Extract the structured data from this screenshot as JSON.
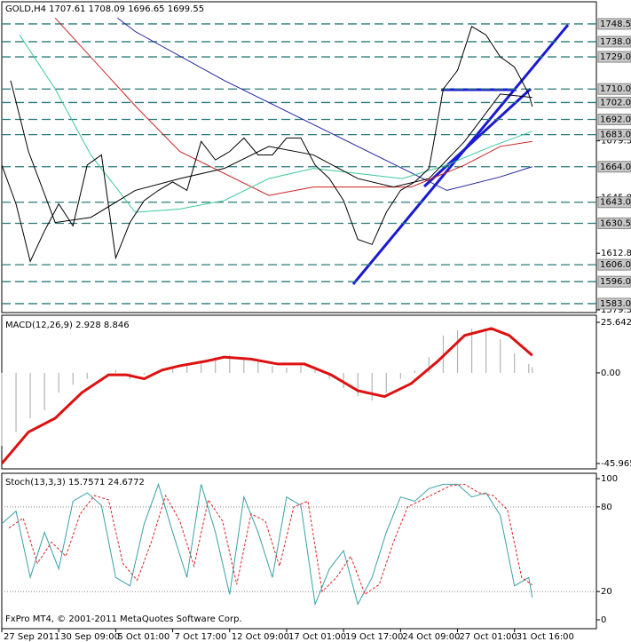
{
  "chart_data": [
    {
      "type": "line",
      "title": "GOLD,H4  1707.61 1708.09 1696.65 1699.55",
      "xlim": [
        0,
        167
      ],
      "ylim": [
        1577.7,
        1753.2
      ],
      "yticks": [
        {
          "value": 1579.3,
          "label": "1579.30"
        },
        {
          "value": 1612.8,
          "label": "1612.80"
        },
        {
          "value": 1645.8,
          "label": "1645.80"
        },
        {
          "value": 1679.3,
          "label": "1679.30"
        }
      ],
      "levels": [
        {
          "value": 1748.5,
          "label": "1748.50"
        },
        {
          "value": 1738,
          "label": "1738.00"
        },
        {
          "value": 1729,
          "label": "1729.00"
        },
        {
          "value": 1710,
          "label": "1710.00"
        },
        {
          "value": 1702,
          "label": "1702.00"
        },
        {
          "value": 1692,
          "label": "1692.00"
        },
        {
          "value": 1683,
          "label": "1683.00"
        },
        {
          "value": 1664,
          "label": "1664.00"
        },
        {
          "value": 1643,
          "label": "1643.00"
        },
        {
          "value": 1630.5,
          "label": "1630.50"
        },
        {
          "value": 1606,
          "label": "1606.00"
        },
        {
          "value": 1596,
          "label": "1596.00"
        },
        {
          "value": 1583,
          "label": "1583.00"
        }
      ],
      "level_color": "#2a7a7a",
      "series": [
        {
          "color": "#2222a0",
          "style": "line",
          "x": [
            32.5,
            37.5,
            62.5,
            87.5,
            112.5,
            125,
            140,
            149
          ],
          "values": [
            1752,
            1744,
            1715,
            1689,
            1663,
            1650,
            1658,
            1664
          ]
        },
        {
          "color": "#cc2222",
          "style": "line",
          "x": [
            15,
            37.5,
            50,
            75,
            87.5,
            100,
            115,
            130,
            140,
            149
          ],
          "values": [
            1752,
            1700,
            1673,
            1647,
            1652,
            1652,
            1652,
            1665,
            1676,
            1679
          ]
        },
        {
          "color": "#3cc89a",
          "style": "line",
          "x": [
            5,
            15,
            25,
            37.5,
            50,
            62.5,
            75,
            87.5,
            100,
            112.5,
            125,
            137.5,
            149
          ],
          "values": [
            1742,
            1710,
            1671,
            1637,
            1639,
            1644,
            1657,
            1663,
            1660,
            1657,
            1665,
            1676,
            1685
          ]
        },
        {
          "color": "#000000",
          "style": "line",
          "x": [
            2.5,
            7.5,
            15,
            25,
            37.5,
            50,
            62.5,
            75,
            87.5,
            100,
            110,
            120,
            130,
            140,
            149
          ],
          "values": [
            1715,
            1673,
            1631,
            1634,
            1650,
            1657,
            1663,
            1676,
            1671,
            1657,
            1652,
            1657,
            1679,
            1707,
            1705
          ]
        },
        {
          "color": "#000000",
          "style": "line",
          "x": [
            0,
            4,
            8,
            12,
            16,
            20,
            24,
            28,
            32,
            36,
            40,
            44,
            48,
            52,
            56,
            60,
            64,
            68,
            72,
            76,
            80,
            84,
            88,
            92,
            96,
            100,
            104,
            108,
            112,
            116,
            120,
            124,
            128,
            132,
            136,
            140,
            144,
            148,
            149
          ],
          "values": [
            1665,
            1642,
            1608,
            1626,
            1642,
            1629,
            1665,
            1671,
            1610,
            1631,
            1644,
            1650,
            1655,
            1650,
            1679,
            1668,
            1673,
            1681,
            1671,
            1671,
            1681,
            1681,
            1665,
            1657,
            1644,
            1621,
            1618,
            1637,
            1650,
            1655,
            1663,
            1710,
            1721,
            1747,
            1742,
            1729,
            1723,
            1707,
            1699.55
          ]
        }
      ]
    },
    {
      "type": "macd",
      "title": "MACD(12,26,9) 2.928 8.846",
      "xlim": [
        0,
        167
      ],
      "ylim": [
        -48.67,
        29.24
      ],
      "yticks": [
        25.642,
        {
          "value": 0,
          "label": "0.00"
        },
        -45.965
      ],
      "series": [
        {
          "color": "#b4b4b4",
          "style": "bar",
          "x": [
            0,
            4,
            8,
            12,
            16,
            20,
            24,
            28,
            32,
            36,
            40,
            44,
            48,
            52,
            56,
            60,
            64,
            68,
            72,
            76,
            80,
            84,
            88,
            92,
            96,
            100,
            104,
            108,
            112,
            116,
            120,
            124,
            128,
            132,
            136,
            140,
            144,
            148,
            149
          ],
          "values": [
            -37,
            -30,
            -23,
            -19,
            -10,
            -6,
            -3,
            0,
            1.4,
            -3,
            -1,
            0,
            3,
            4.5,
            6,
            8,
            9,
            8,
            6,
            3.6,
            2.7,
            3.6,
            1.4,
            -3,
            -7.7,
            -12,
            -14,
            -10,
            -3,
            1.4,
            8,
            19,
            21.6,
            22.5,
            21.6,
            17,
            10,
            4.5,
            2.928
          ]
        },
        {
          "color": "#dd1111",
          "style": "line",
          "width": 3,
          "x": [
            0,
            7.5,
            15,
            22.5,
            30,
            35,
            40,
            45,
            50,
            57.5,
            62.5,
            70,
            77.5,
            85,
            92.5,
            100,
            107.5,
            115,
            122.5,
            130,
            137.5,
            142.5,
            149
          ],
          "values": [
            -46,
            -30,
            -23,
            -10,
            -1,
            -1,
            -3,
            1.4,
            3.6,
            6,
            8,
            7,
            4.5,
            4.5,
            -1,
            -9,
            -12,
            -5.4,
            6,
            19,
            22.5,
            19,
            8.846
          ]
        }
      ]
    },
    {
      "type": "stochastic",
      "title": "Stoch(13,3,3) 15.7571 24.6772",
      "xlim": [
        0,
        167
      ],
      "ylim": [
        -6.3,
        103.8
      ],
      "yticks": [
        0,
        20,
        80,
        100
      ],
      "dotted_levels": [
        20,
        80
      ],
      "xticks": [
        {
          "value": 0,
          "label": "27 Sep 2011"
        },
        {
          "value": 16,
          "label": "30 Sep 09:00"
        },
        {
          "value": 32,
          "label": "5 Oct 01:00"
        },
        {
          "value": 48,
          "label": "7 Oct 17:00"
        },
        {
          "value": 64,
          "label": "12 Oct 09:00"
        },
        {
          "value": 80,
          "label": "17 Oct 01:00"
        },
        {
          "value": 96,
          "label": "19 Oct 17:00"
        },
        {
          "value": 112,
          "label": "24 Oct 09:00"
        },
        {
          "value": 128,
          "label": "27 Oct 01:00"
        },
        {
          "value": 144,
          "label": "31 Oct 16:00"
        }
      ],
      "footer": "FxPro MT4, © 2001-2011 MetaQuotes Software Corp.",
      "series": [
        {
          "color": "#3aa0a8",
          "style": "line",
          "x": [
            0,
            4,
            8,
            12,
            16,
            20,
            24,
            28,
            32,
            36,
            40,
            44,
            48,
            52,
            56,
            60,
            64,
            68,
            72,
            76,
            80,
            84,
            88,
            92,
            96,
            100,
            104,
            108,
            112,
            116,
            120,
            124,
            128,
            132,
            136,
            140,
            144,
            148,
            149
          ],
          "values": [
            68,
            77,
            30,
            62,
            36,
            84,
            90,
            81,
            30,
            24,
            68,
            96,
            62,
            30,
            96,
            62,
            18,
            87,
            62,
            30,
            87,
            81,
            11,
            36,
            49,
            11,
            30,
            62,
            87,
            84,
            93,
            96,
            96,
            87,
            90,
            74,
            24,
            30,
            15.7571
          ]
        },
        {
          "color": "#dd2222",
          "style": "dashed",
          "x": [
            2,
            6,
            10,
            14,
            18,
            22,
            26,
            30,
            34,
            38,
            42,
            46,
            50,
            54,
            58,
            62,
            66,
            70,
            74,
            78,
            82,
            86,
            90,
            94,
            98,
            102,
            106,
            110,
            114,
            118,
            122,
            126,
            130,
            134,
            138,
            142,
            146,
            149
          ],
          "values": [
            65,
            72,
            40,
            55,
            45,
            75,
            88,
            85,
            40,
            28,
            55,
            88,
            70,
            38,
            85,
            70,
            25,
            75,
            70,
            38,
            80,
            84,
            20,
            30,
            45,
            18,
            25,
            55,
            80,
            85,
            90,
            95,
            96,
            90,
            88,
            78,
            30,
            24.6772
          ]
        }
      ]
    }
  ]
}
